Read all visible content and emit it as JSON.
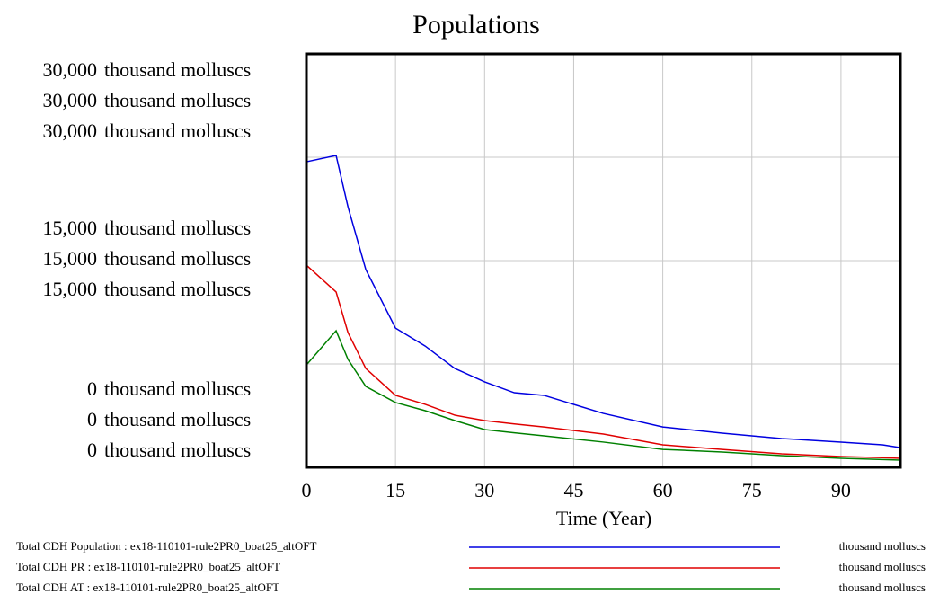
{
  "chart_data": {
    "type": "line",
    "title": "Populations",
    "x_label": "Time (Year)",
    "xlim": [
      0,
      100
    ],
    "xticks": [
      0,
      15,
      30,
      45,
      60,
      75,
      90
    ],
    "ylim": [
      0,
      30000
    ],
    "yticks": [
      {
        "value": 0,
        "label": "0"
      },
      {
        "value": 15000,
        "label": "15,000"
      },
      {
        "value": 30000,
        "label": "30,000"
      }
    ],
    "ygrid": [
      7500,
      15000,
      22500
    ],
    "grid": true,
    "x": [
      0,
      5,
      7,
      10,
      15,
      20,
      25,
      30,
      35,
      40,
      50,
      60,
      70,
      80,
      90,
      97,
      100
    ],
    "series": [
      {
        "name": "Total CDH Population : ex18-110101-rule2PR0_boat25_altOFT",
        "unit": "thousand molluscs",
        "color": "#0000e0",
        "values": [
          22170,
          22630,
          18900,
          14350,
          10100,
          8800,
          7170,
          6200,
          5410,
          5220,
          3910,
          2930,
          2480,
          2090,
          1830,
          1630,
          1430
        ]
      },
      {
        "name": "Total CDH PR : ex18-110101-rule2PR0_boat25_altOFT",
        "unit": "thousand molluscs",
        "color": "#e00000",
        "values": [
          14670,
          12720,
          9780,
          7170,
          5220,
          4570,
          3780,
          3390,
          3150,
          2930,
          2410,
          1630,
          1300,
          980,
          780,
          700,
          650
        ]
      },
      {
        "name": "Total CDH AT : ex18-110101-rule2PR0_boat25_altOFT",
        "unit": "thousand molluscs",
        "color": "#008000",
        "values": [
          7430,
          9910,
          7830,
          5870,
          4700,
          4110,
          3390,
          2740,
          2500,
          2280,
          1830,
          1300,
          1110,
          850,
          650,
          560,
          520
        ]
      }
    ]
  }
}
